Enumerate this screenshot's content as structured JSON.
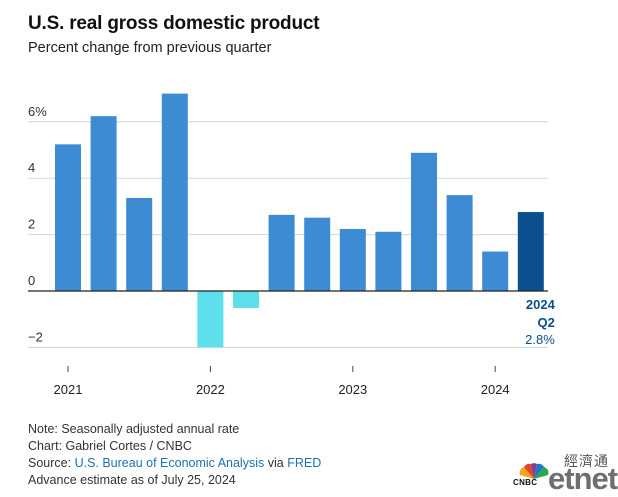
{
  "header": {
    "title": "U.S. real gross domestic product",
    "subtitle": "Percent change from previous quarter"
  },
  "chart_data": {
    "type": "bar",
    "title": "U.S. real gross domestic product",
    "subtitle": "Percent change from previous quarter",
    "categories": [
      "2021 Q1",
      "2021 Q2",
      "2021 Q3",
      "2021 Q4",
      "2022 Q1",
      "2022 Q2",
      "2022 Q3",
      "2022 Q4",
      "2023 Q1",
      "2023 Q2",
      "2023 Q3",
      "2023 Q4",
      "2024 Q1",
      "2024 Q2"
    ],
    "values": [
      5.2,
      6.2,
      3.3,
      7.0,
      -2.0,
      -0.6,
      2.7,
      2.6,
      2.2,
      2.1,
      4.9,
      3.4,
      1.4,
      2.8
    ],
    "ylim": [
      -2.4,
      7.0
    ],
    "yticks": [
      {
        "value": 6,
        "label": "6%"
      },
      {
        "value": 4,
        "label": "4"
      },
      {
        "value": 2,
        "label": "2"
      },
      {
        "value": 0,
        "label": "0"
      },
      {
        "value": -2,
        "label": "−2"
      }
    ],
    "xlabels": [
      {
        "index": 0,
        "label": "2021"
      },
      {
        "index": 4,
        "label": "2022"
      },
      {
        "index": 8,
        "label": "2023"
      },
      {
        "index": 12,
        "label": "2024"
      }
    ],
    "grid": true,
    "colors": {
      "positive": "#3d8bd2",
      "negative": "#5ee0ec",
      "latest": "#0b4f8c",
      "gridline": "#d6d6d6",
      "zero_line": "#222222"
    },
    "annotation": {
      "index": 13,
      "lines": [
        "2024",
        "Q2",
        "2.8%"
      ]
    }
  },
  "notes": {
    "note": "Note: Seasonally adjusted annual rate",
    "chart_credit": "Chart: Gabriel Cortes / CNBC",
    "source_prefix": "Source: ",
    "source_name": "U.S. Bureau of Economic Analysis",
    "source_mid": " via ",
    "source_fred": "FRED",
    "estimate": "Advance estimate as of July 25, 2024"
  },
  "watermark": {
    "cnbc": "CNBC",
    "zh": "經濟通",
    "etnet": "etnet"
  }
}
